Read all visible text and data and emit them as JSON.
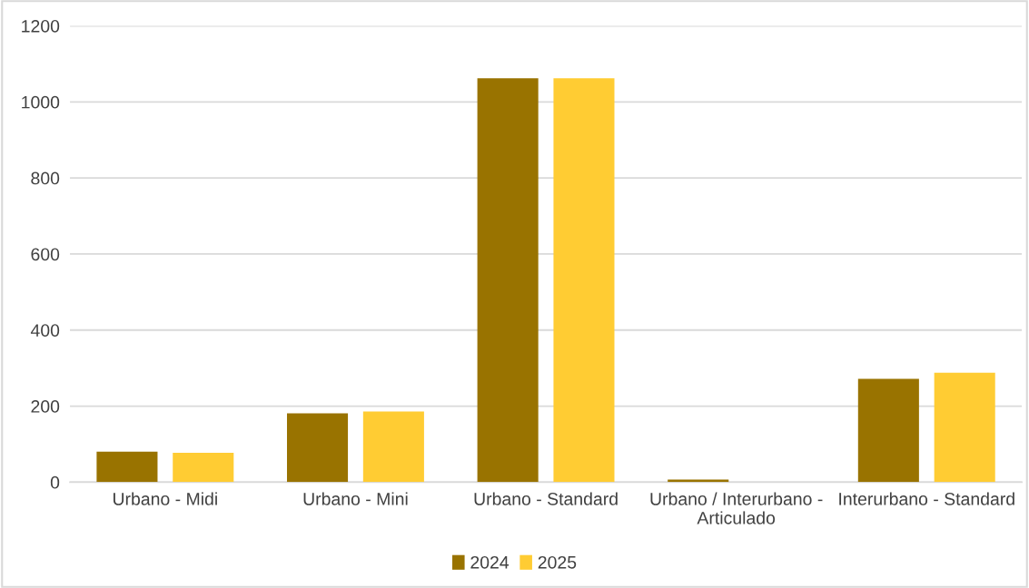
{
  "chart_data": {
    "type": "bar",
    "categories": [
      "Urbano - Midi",
      "Urbano - Mini",
      "Urbano - Standard",
      "Urbano / Interurbano -\nArticulado",
      "Interurbano - Standard"
    ],
    "series": [
      {
        "name": "2024",
        "color": "#997300",
        "values": [
          80,
          181,
          1062,
          7,
          272
        ]
      },
      {
        "name": "2025",
        "color": "#ffcc33",
        "values": [
          77,
          186,
          1062,
          null,
          288
        ]
      }
    ],
    "ylim": [
      0,
      1200
    ],
    "yticks": [
      0,
      200,
      400,
      600,
      800,
      1000,
      1200
    ],
    "grid": "y",
    "legend": "bottom"
  }
}
